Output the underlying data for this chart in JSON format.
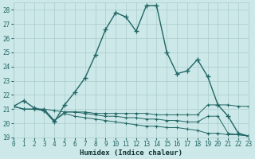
{
  "xlabel": "Humidex (Indice chaleur)",
  "xlim": [
    0,
    23
  ],
  "ylim": [
    19,
    28.5
  ],
  "yticks": [
    19,
    20,
    21,
    22,
    23,
    24,
    25,
    26,
    27,
    28
  ],
  "xticks": [
    0,
    1,
    2,
    3,
    4,
    5,
    6,
    7,
    8,
    9,
    10,
    11,
    12,
    13,
    14,
    15,
    16,
    17,
    18,
    19,
    20,
    21,
    22,
    23
  ],
  "bg_color": "#cce8e8",
  "grid_color": "#aacccc",
  "line_color": "#226666",
  "series": [
    [
      21.2,
      21.6,
      21.1,
      20.9,
      20.1,
      21.3,
      22.2,
      23.2,
      24.8,
      26.6,
      27.8,
      27.5,
      26.5,
      28.3,
      28.3,
      25.0,
      23.5,
      23.7,
      24.5,
      23.3,
      21.3,
      20.5,
      19.3,
      19.1
    ],
    [
      21.2,
      21.0,
      21.0,
      21.0,
      20.2,
      20.8,
      20.8,
      20.8,
      20.7,
      20.7,
      20.7,
      20.7,
      20.7,
      20.7,
      20.6,
      20.6,
      20.6,
      20.6,
      20.6,
      21.3,
      21.3,
      21.3,
      21.2,
      21.2
    ],
    [
      21.2,
      21.0,
      21.0,
      21.0,
      20.9,
      20.8,
      20.8,
      20.7,
      20.6,
      20.5,
      20.5,
      20.4,
      20.4,
      20.3,
      20.3,
      20.2,
      20.2,
      20.1,
      20.1,
      20.5,
      20.5,
      19.3,
      19.2,
      19.1
    ],
    [
      21.2,
      21.0,
      21.0,
      20.9,
      20.2,
      20.7,
      20.5,
      20.4,
      20.3,
      20.2,
      20.1,
      20.0,
      19.9,
      19.8,
      19.8,
      19.7,
      19.7,
      19.6,
      19.5,
      19.3,
      19.3,
      19.2,
      19.2,
      19.1
    ]
  ]
}
